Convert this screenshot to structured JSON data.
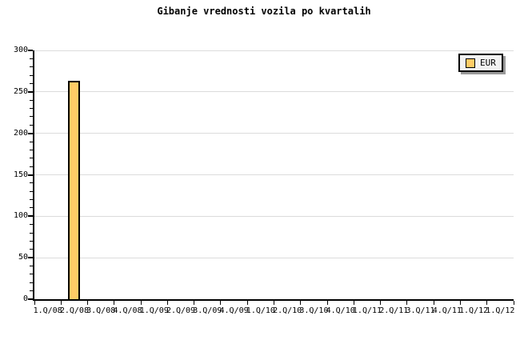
{
  "title": "Gibanje vrednosti vozila po kvartalih",
  "legend": {
    "position": "top-right",
    "items": [
      {
        "label": "EUR",
        "swatch_color": "#FFCC66"
      }
    ]
  },
  "chart_data": {
    "type": "bar",
    "title": "Gibanje vrednosti vozila po kvartalih",
    "categories": [
      "1.Q/08",
      "2.Q/08",
      "3.Q/08",
      "4.Q/08",
      "1.Q/09",
      "2.Q/09",
      "3.Q/09",
      "4.Q/09",
      "1.Q/10",
      "2.Q/10",
      "3.Q/10",
      "4.Q/10",
      "1.Q/11",
      "2.Q/11",
      "3.Q/11",
      "4.Q/11",
      "1.Q/12",
      "1.Q/12"
    ],
    "series": [
      {
        "name": "EUR",
        "color": "#FFCC66",
        "values": [
          null,
          263,
          null,
          null,
          null,
          null,
          null,
          null,
          null,
          null,
          null,
          null,
          null,
          null,
          null,
          null,
          null,
          null
        ]
      }
    ],
    "xlabel": "",
    "ylabel": "",
    "ylim": [
      0,
      300
    ],
    "ytick_step": 50,
    "ytick_minor_step": 10,
    "ytick_labels": [
      "0",
      "50",
      "100",
      "150",
      "200",
      "250",
      "300"
    ],
    "grid": "horizontal gridlines at major y ticks",
    "legend_position": "top-right"
  },
  "colors": {
    "background": "#FFFFFF",
    "bar_fill": "#FFCC66",
    "bar_border": "#000000",
    "gridline": "#DCDCDC",
    "axis": "#000000",
    "text": "#000000",
    "legend_bg": "#F2F2F2",
    "legend_border": "#000000",
    "legend_shadow": "#999999"
  }
}
